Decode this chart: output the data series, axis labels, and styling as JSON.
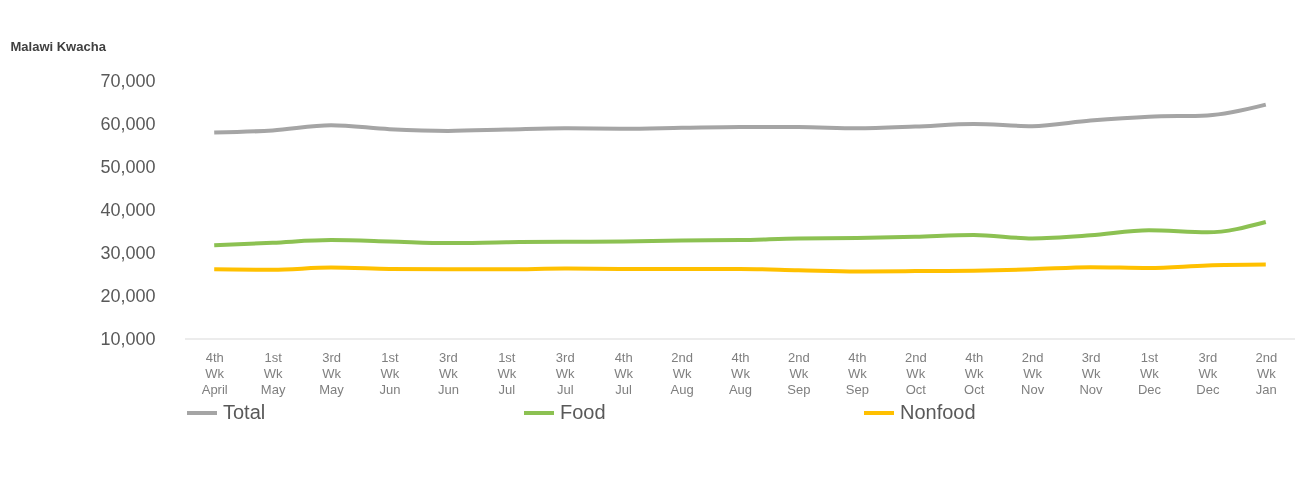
{
  "chart_data": {
    "type": "line",
    "ylabel": "Malawi Kwacha",
    "categories": [
      "4th Wk April",
      "1st Wk May",
      "3rd Wk May",
      "1st Wk Jun",
      "3rd Wk Jun",
      "1st Wk Jul",
      "3rd Wk Jul",
      "4th Wk Jul",
      "2nd Wk Aug",
      "4th Wk Aug",
      "2nd Wk Sep",
      "4th Wk Sep",
      "2nd Wk Oct",
      "4th Wk Oct",
      "2nd Wk Nov",
      "3rd Wk Nov",
      "1st Wk Dec",
      "3rd Wk Dec",
      "2nd Wk Jan"
    ],
    "series": [
      {
        "name": "Total",
        "color": "#a5a5a5",
        "values": [
          58000,
          58500,
          59700,
          58800,
          58400,
          58700,
          59000,
          58900,
          59100,
          59300,
          59300,
          59000,
          59400,
          60000,
          59500,
          60800,
          61700,
          62000,
          64500
        ]
      },
      {
        "name": "Food",
        "color": "#8cc152",
        "values": [
          31800,
          32400,
          33000,
          32700,
          32300,
          32500,
          32600,
          32700,
          32900,
          33000,
          33400,
          33500,
          33800,
          34200,
          33400,
          34100,
          35300,
          34800,
          37200
        ]
      },
      {
        "name": "Nonfood",
        "color": "#ffc000",
        "values": [
          26200,
          26100,
          26600,
          26300,
          26200,
          26200,
          26400,
          26300,
          26300,
          26300,
          26000,
          25700,
          25800,
          25900,
          26200,
          26700,
          26500,
          27100,
          27300
        ]
      }
    ],
    "ylim": [
      10000,
      70000
    ],
    "yticks": [
      {
        "value": 10000,
        "label": "10,000"
      },
      {
        "value": 20000,
        "label": "20,000"
      },
      {
        "value": 30000,
        "label": "30,000"
      },
      {
        "value": 40000,
        "label": "40,000"
      },
      {
        "value": 50000,
        "label": "50,000"
      },
      {
        "value": 60000,
        "label": "60,000"
      },
      {
        "value": 70000,
        "label": "70,000"
      }
    ],
    "grid": false,
    "legend": "bottom",
    "marker": "none",
    "line_style": "solid"
  }
}
